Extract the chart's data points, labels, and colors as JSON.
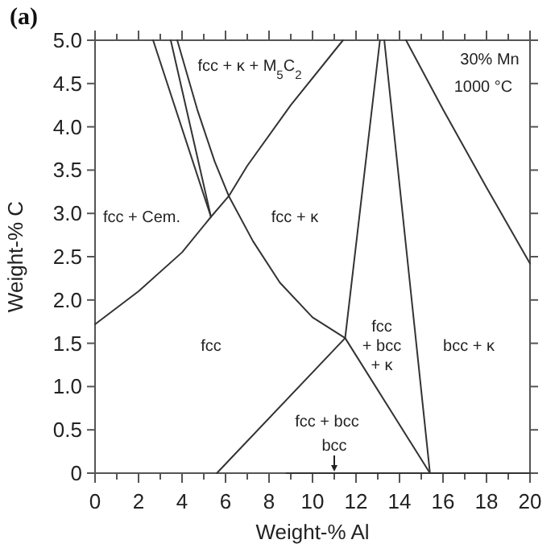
{
  "chart_data": {
    "type": "line",
    "title": "(a)",
    "xlabel": "Weight-% Al",
    "ylabel": "Weight-% C",
    "xlim": [
      0,
      20
    ],
    "ylim": [
      0,
      5
    ],
    "xticks": [
      0,
      {
        "value": 1,
        "label": null
      },
      2,
      {
        "value": 3,
        "label": null
      },
      4,
      {
        "value": 5,
        "label": null
      },
      6,
      {
        "value": 7,
        "label": null
      },
      8,
      {
        "value": 9,
        "label": null
      },
      10,
      {
        "value": 11,
        "label": null
      },
      12,
      {
        "value": 13,
        "label": null
      },
      14,
      {
        "value": 15,
        "label": null
      },
      16,
      {
        "value": 17,
        "label": null
      },
      18,
      {
        "value": 19,
        "label": null
      },
      20
    ],
    "yticks": [
      0,
      0.5,
      {
        "value": 1,
        "label": "1.0"
      },
      1.5,
      {
        "value": 2,
        "label": "2.0"
      },
      2.5,
      {
        "value": 3,
        "label": "3.0"
      },
      3.5,
      {
        "value": 4,
        "label": "4.0"
      },
      4.5,
      {
        "value": 5,
        "label": "5.0"
      }
    ],
    "marker": "none",
    "line_style": "solid",
    "grid": false,
    "series": [
      {
        "color": "#333333",
        "x": [
          0,
          2,
          4,
          5.33,
          6.15,
          7,
          9,
          11.4
        ],
        "values": [
          1.72,
          2.1,
          2.55,
          2.96,
          3.2,
          3.55,
          4.25,
          5.0
        ]
      },
      {
        "color": "#333333",
        "x": [
          2.67,
          5.33
        ],
        "values": [
          5.0,
          2.96
        ]
      },
      {
        "color": "#333333",
        "x": [
          3.48,
          5.33
        ],
        "values": [
          5.0,
          2.96
        ]
      },
      {
        "color": "#333333",
        "x": [
          3.78,
          4.7,
          5.5,
          6.15,
          7.26,
          8.5,
          10,
          11.5
        ],
        "values": [
          5.0,
          4.2,
          3.6,
          3.2,
          2.68,
          2.2,
          1.8,
          1.56
        ]
      },
      {
        "color": "#333333",
        "x": [
          5.6,
          11.5,
          15.4
        ],
        "values": [
          0,
          1.56,
          0
        ]
      },
      {
        "color": "#333333",
        "x": [
          11.5,
          13.1
        ],
        "values": [
          1.56,
          5.0
        ]
      },
      {
        "color": "#333333",
        "x": [
          15.4,
          13.3
        ],
        "values": [
          0,
          5.0
        ]
      },
      {
        "color": "#333333",
        "x": [
          14.3,
          16,
          18,
          20
        ],
        "values": [
          5.0,
          4.2,
          3.3,
          2.42
        ]
      },
      {
        "color": "#333333",
        "x": [
          8.8,
          20
        ],
        "values": [
          0,
          0
        ]
      }
    ],
    "annotations": [
      "fcc + κ + M$_{5}$C$_{2}$",
      "30% Mn",
      "1000 °C",
      "fcc + Cem.",
      "fcc + κ",
      "fcc",
      "fcc\n+ bcc\n+ κ",
      "bcc + κ",
      "fcc + bcc",
      {
        "text": "bcc",
        "x": 11,
        "y": 0
      }
    ]
  }
}
